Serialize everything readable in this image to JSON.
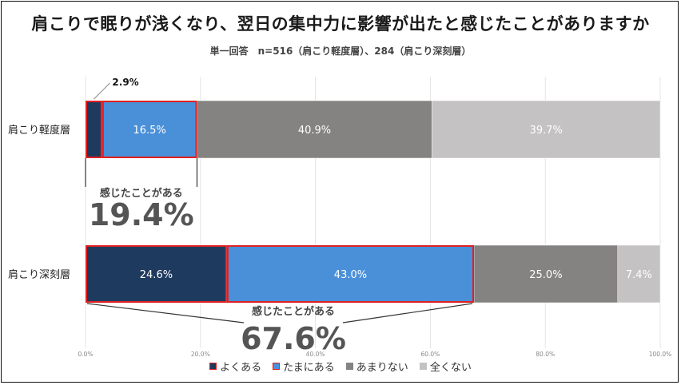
{
  "title": "肩こりで眠りが浅くなり、翌日の集中力に影響が出たと感じたことがありますか",
  "subtitle": "単一回答　n=516（肩こり軽度層）、284（肩こり深刻層）",
  "chart_data": {
    "type": "bar",
    "orientation": "horizontal",
    "stacked": true,
    "categories": [
      "肩こり軽度層",
      "肩こり深刻層"
    ],
    "series": [
      {
        "name": "よくある",
        "values": [
          2.9,
          24.6
        ],
        "color": "#1f3a5f",
        "labels": [
          "2.9%",
          "24.6%"
        ]
      },
      {
        "name": "たまにある",
        "values": [
          16.5,
          43.0
        ],
        "color": "#4a90d9",
        "labels": [
          "16.5%",
          "43.0%"
        ]
      },
      {
        "name": "あまりない",
        "values": [
          40.9,
          25.0
        ],
        "color": "#858282",
        "labels": [
          "40.9%",
          "25.0%"
        ]
      },
      {
        "name": "全くない",
        "values": [
          39.7,
          7.4
        ],
        "color": "#c5c2c3",
        "labels": [
          "39.7%",
          "7.4%"
        ]
      }
    ],
    "xlim": [
      0,
      100
    ],
    "ticks": [
      "0.0%",
      "20.0%",
      "40.0%",
      "60.0%",
      "80.0%",
      "100.0%"
    ],
    "grid": true,
    "legend": "bottom",
    "highlight_color": "#e02020",
    "annotations": [
      {
        "label": "感じたことがある",
        "value": "19.4%"
      },
      {
        "label": "感じたことがある",
        "value": "67.6%"
      }
    ]
  }
}
